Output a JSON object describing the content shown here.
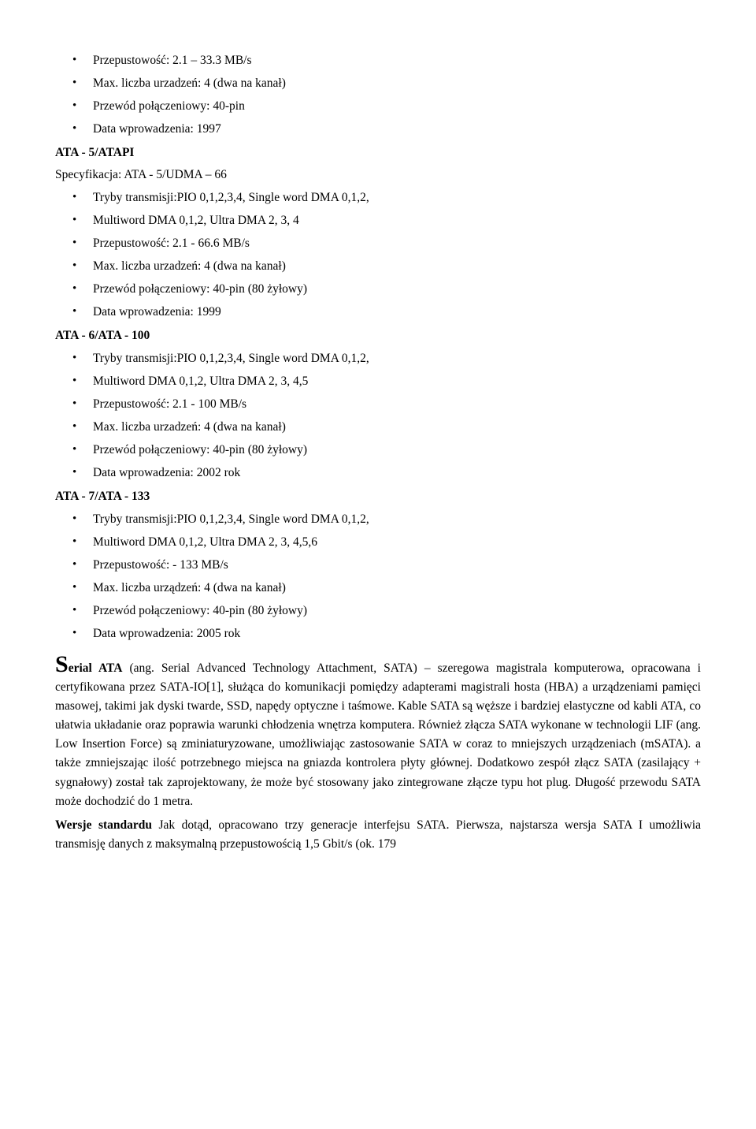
{
  "block_prev": {
    "items": [
      "Przepustowość: 2.1 – 33.3 MB/s",
      "Max. liczba urzadzeń: 4 (dwa na kanał)",
      "Przewód połączeniowy: 40-pin",
      "Data wprowadzenia: 1997"
    ]
  },
  "ata5": {
    "heading": "ATA - 5/ATAPI",
    "spec": "Specyfikacja: ATA - 5/UDMA – 66",
    "items": [
      "Tryby transmisji:PIO 0,1,2,3,4, Single word DMA 0,1,2,",
      "Multiword DMA 0,1,2, Ultra DMA 2, 3, 4",
      "Przepustowość: 2.1 - 66.6 MB/s",
      "Max. liczba urzadzeń: 4 (dwa na kanał)",
      "Przewód połączeniowy: 40-pin (80 żyłowy)",
      "Data wprowadzenia: 1999"
    ]
  },
  "ata6": {
    "heading": "ATA - 6/ATA - 100",
    "items": [
      "Tryby transmisji:PIO 0,1,2,3,4, Single word DMA 0,1,2,",
      "Multiword DMA 0,1,2, Ultra DMA 2, 3, 4,5",
      "Przepustowość: 2.1 - 100 MB/s",
      "Max. liczba urzadzeń: 4 (dwa na kanał)",
      "Przewód połączeniowy: 40-pin (80 żyłowy)",
      "Data wprowadzenia: 2002 rok"
    ]
  },
  "ata7": {
    "heading": "ATA - 7/ATA - 133",
    "items": [
      "Tryby transmisji:PIO 0,1,2,3,4, Single word DMA 0,1,2,",
      "Multiword DMA 0,1,2, Ultra DMA 2, 3, 4,5,6",
      "Przepustowość:  - 133 MB/s",
      "Max. liczba urządzeń: 4 (dwa na kanał)",
      "Przewód połączeniowy: 40-pin (80 żyłowy)",
      "Data wprowadzenia: 2005 rok"
    ]
  },
  "serial_ata": {
    "dropcap": "S",
    "heading_rest": "erial ATA",
    "body": " (ang. Serial Advanced Technology Attachment, SATA) – szeregowa magistrala komputerowa, opracowana i certyfikowana przez SATA-IO[1], służąca do komunikacji pomiędzy adapterami magistrali hosta (HBA) a urządzeniami pamięci masowej, takimi jak dyski twarde, SSD, napędy optyczne i taśmowe. Kable SATA są węższe i bardziej elastyczne od kabli ATA, co ułatwia układanie oraz poprawia warunki chłodzenia wnętrza komputera. Również złącza SATA wykonane w technologii LIF (ang. Low Insertion Force) są zminiaturyzowane, umożliwiając zastosowanie SATA w coraz to mniejszych urządzeniach (mSATA). a także zmniejszając ilość potrzebnego miejsca na gniazda kontrolera płyty głównej. Dodatkowo zespół złącz SATA (zasilający + sygnałowy) został tak zaprojektowany, że może być stosowany jako zintegrowane złącze typu hot plug. Długość przewodu SATA może dochodzić do 1 metra."
  },
  "wersje": {
    "heading": "Wersje standardu",
    "body": " Jak dotąd, opracowano trzy generacje interfejsu SATA. Pierwsza, najstarsza wersja SATA I umożliwia transmisję danych z maksymalną przepustowością 1,5 Gbit/s (ok. 179"
  }
}
